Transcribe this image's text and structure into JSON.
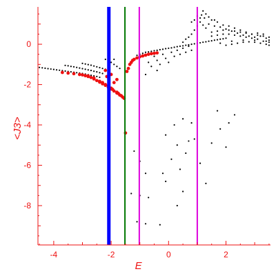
{
  "chart_data": {
    "type": "scatter",
    "title": "",
    "xlabel": "E",
    "ylabel": "<J3>",
    "xlim": [
      -4.55,
      3.55
    ],
    "ylim": [
      -9.95,
      1.85
    ],
    "xticks": [
      -4,
      -2,
      0,
      2
    ],
    "yticks": [
      0,
      -2,
      -4,
      -6,
      -8
    ],
    "colors": {
      "axis": "#ee1111",
      "black_points": "#000000",
      "red_points": "#ee1111",
      "line_blue": "#0000ff",
      "line_green": "#007700",
      "line_magenta": "#dd00dd"
    },
    "vertical_lines": [
      {
        "x": -2.08,
        "color": "#0000ff",
        "width": "thick"
      },
      {
        "x": -1.52,
        "color": "#007700",
        "width": "thin"
      },
      {
        "x": -1.02,
        "color": "#dd00dd",
        "width": "thin"
      },
      {
        "x": 1.0,
        "color": "#dd00dd",
        "width": "thin"
      }
    ],
    "series": [
      {
        "color": "#000000",
        "points": [
          [
            -4.5,
            -1.15
          ],
          [
            -4.4,
            -1.17
          ],
          [
            -4.3,
            -1.19
          ],
          [
            -4.2,
            -1.21
          ],
          [
            -4.1,
            -1.23
          ],
          [
            -4.0,
            -1.25
          ],
          [
            -3.9,
            -1.27
          ],
          [
            -3.8,
            -1.29
          ],
          [
            -3.7,
            -1.31
          ],
          [
            -3.6,
            -1.33
          ],
          [
            -3.5,
            -1.35
          ],
          [
            -3.4,
            -1.37
          ],
          [
            -3.3,
            -1.39
          ],
          [
            -3.2,
            -1.41
          ],
          [
            -3.1,
            -1.43
          ],
          [
            -3.0,
            -1.45
          ],
          [
            -2.9,
            -1.48
          ],
          [
            -2.8,
            -1.51
          ],
          [
            -2.7,
            -1.54
          ],
          [
            -2.6,
            -1.57
          ],
          [
            -2.5,
            -1.6
          ],
          [
            -2.4,
            -1.64
          ],
          [
            -3.6,
            -1.05
          ],
          [
            -3.5,
            -1.07
          ],
          [
            -3.4,
            -1.1
          ],
          [
            -3.3,
            -1.12
          ],
          [
            -3.2,
            -1.15
          ],
          [
            -3.1,
            -1.18
          ],
          [
            -3.0,
            -1.21
          ],
          [
            -2.9,
            -1.24
          ],
          [
            -2.8,
            -1.27
          ],
          [
            -2.7,
            -1.3
          ],
          [
            -2.6,
            -1.34
          ],
          [
            -2.5,
            -1.37
          ],
          [
            -2.4,
            -1.41
          ],
          [
            -2.3,
            -1.45
          ],
          [
            -3.0,
            -0.95
          ],
          [
            -2.9,
            -0.98
          ],
          [
            -2.8,
            -1.01
          ],
          [
            -2.7,
            -1.04
          ],
          [
            -2.6,
            -1.08
          ],
          [
            -2.5,
            -1.12
          ],
          [
            -2.4,
            -1.16
          ],
          [
            -2.3,
            -1.2
          ],
          [
            -2.2,
            -1.24
          ],
          [
            -2.1,
            -1.28
          ],
          [
            -2.2,
            -0.75
          ],
          [
            -2.1,
            -0.85
          ],
          [
            -2.0,
            -0.9
          ],
          [
            -1.9,
            -1.0
          ],
          [
            -1.8,
            -1.1
          ],
          [
            -1.7,
            -1.2
          ],
          [
            -1.1,
            -0.55
          ],
          [
            -1.0,
            -0.5
          ],
          [
            -0.9,
            -0.45
          ],
          [
            -0.8,
            -0.4
          ],
          [
            -0.7,
            -0.38
          ],
          [
            -0.6,
            -0.35
          ],
          [
            -0.5,
            -0.32
          ],
          [
            -0.4,
            -0.3
          ],
          [
            -0.3,
            -0.27
          ],
          [
            -0.2,
            -0.25
          ],
          [
            -0.1,
            -0.22
          ],
          [
            0.0,
            -0.2
          ],
          [
            0.1,
            -0.18
          ],
          [
            0.2,
            -0.15
          ],
          [
            0.3,
            -0.12
          ],
          [
            0.4,
            -0.1
          ],
          [
            0.5,
            -0.08
          ],
          [
            0.6,
            -0.05
          ],
          [
            0.7,
            -0.03
          ],
          [
            0.8,
            0.0
          ],
          [
            0.9,
            0.02
          ],
          [
            1.0,
            0.05
          ],
          [
            1.1,
            0.07
          ],
          [
            1.2,
            0.1
          ],
          [
            1.3,
            0.12
          ],
          [
            1.4,
            0.15
          ],
          [
            1.5,
            0.17
          ],
          [
            1.6,
            0.2
          ],
          [
            1.7,
            0.22
          ],
          [
            1.8,
            0.25
          ],
          [
            1.9,
            0.27
          ],
          [
            2.0,
            0.3
          ],
          [
            -0.7,
            -0.9
          ],
          [
            -0.6,
            -1.1
          ],
          [
            -0.5,
            -0.6
          ],
          [
            -0.4,
            -0.8
          ],
          [
            -0.3,
            -1.0
          ],
          [
            -0.2,
            -0.5
          ],
          [
            -0.1,
            -0.7
          ],
          [
            0.0,
            -0.9
          ],
          [
            0.1,
            -0.4
          ],
          [
            0.2,
            -0.6
          ],
          [
            0.3,
            -0.3
          ],
          [
            0.4,
            -0.5
          ],
          [
            0.5,
            -0.2
          ],
          [
            0.6,
            -0.4
          ],
          [
            0.7,
            -0.1
          ],
          [
            0.8,
            -0.3
          ],
          [
            -0.4,
            -1.3
          ],
          [
            -0.8,
            -1.5
          ],
          [
            0.5,
            0.1
          ],
          [
            0.6,
            0.25
          ],
          [
            0.7,
            0.35
          ],
          [
            0.8,
            0.5
          ],
          [
            0.9,
            0.7
          ],
          [
            1.0,
            0.9
          ],
          [
            1.1,
            1.1
          ],
          [
            1.2,
            0.95
          ],
          [
            1.3,
            0.8
          ],
          [
            1.4,
            1.0
          ],
          [
            1.5,
            1.2
          ],
          [
            1.6,
            0.9
          ],
          [
            1.7,
            1.1
          ],
          [
            1.8,
            0.85
          ],
          [
            1.9,
            0.95
          ],
          [
            2.0,
            0.75
          ],
          [
            2.1,
            0.9
          ],
          [
            2.2,
            0.65
          ],
          [
            2.3,
            0.8
          ],
          [
            2.4,
            0.55
          ],
          [
            2.5,
            0.7
          ],
          [
            2.6,
            0.45
          ],
          [
            2.7,
            0.6
          ],
          [
            2.8,
            0.4
          ],
          [
            2.9,
            0.5
          ],
          [
            3.0,
            0.35
          ],
          [
            3.1,
            0.55
          ],
          [
            3.2,
            0.4
          ],
          [
            3.3,
            0.5
          ],
          [
            3.4,
            0.3
          ],
          [
            3.5,
            0.2
          ],
          [
            1.1,
            1.3
          ],
          [
            1.15,
            1.45
          ],
          [
            1.2,
            1.65
          ],
          [
            1.25,
            1.3
          ],
          [
            1.3,
            1.5
          ],
          [
            0.9,
            1.2
          ],
          [
            1.0,
            1.4
          ],
          [
            1.4,
            1.35
          ],
          [
            1.6,
            1.2
          ],
          [
            0.8,
            1.1
          ],
          [
            1.5,
            0.4
          ],
          [
            1.7,
            0.45
          ],
          [
            1.9,
            0.5
          ],
          [
            2.1,
            0.5
          ],
          [
            2.3,
            0.45
          ],
          [
            2.5,
            0.4
          ],
          [
            2.7,
            0.35
          ],
          [
            2.9,
            0.3
          ],
          [
            3.1,
            0.25
          ],
          [
            3.3,
            0.15
          ],
          [
            3.5,
            0.1
          ],
          [
            1.5,
            0.6
          ],
          [
            1.7,
            0.65
          ],
          [
            1.9,
            0.7
          ],
          [
            2.1,
            0.7
          ],
          [
            2.3,
            0.65
          ],
          [
            2.5,
            0.6
          ],
          [
            2.7,
            0.55
          ],
          [
            2.9,
            0.5
          ],
          [
            3.1,
            0.45
          ],
          [
            3.3,
            0.4
          ],
          [
            3.5,
            0.35
          ],
          [
            2.0,
            -0.05
          ],
          [
            2.2,
            0.0
          ],
          [
            2.4,
            0.05
          ],
          [
            2.6,
            0.1
          ],
          [
            2.8,
            0.12
          ],
          [
            3.0,
            0.1
          ],
          [
            3.2,
            0.05
          ],
          [
            3.4,
            0.0
          ],
          [
            3.5,
            -0.05
          ],
          [
            1.8,
            0.05
          ],
          [
            2.2,
            0.15
          ],
          [
            2.6,
            0.2
          ],
          [
            3.0,
            0.2
          ],
          [
            3.4,
            0.15
          ],
          [
            -2.1,
            -0.85
          ],
          [
            -1.9,
            -0.75
          ],
          [
            -1.2,
            -5.3
          ],
          [
            -1.0,
            -5.8
          ],
          [
            -0.8,
            -6.4
          ],
          [
            -1.3,
            -7.4
          ],
          [
            -1.0,
            -7.5
          ],
          [
            -0.7,
            -7.6
          ],
          [
            -1.1,
            -8.8
          ],
          [
            -0.8,
            -8.9
          ],
          [
            -0.3,
            -8.95
          ],
          [
            -0.1,
            -4.5
          ],
          [
            0.2,
            -4.0
          ],
          [
            0.5,
            -3.7
          ],
          [
            0.3,
            -5.0
          ],
          [
            0.6,
            -5.4
          ],
          [
            0.1,
            -5.7
          ],
          [
            0.4,
            -6.2
          ],
          [
            -0.2,
            -6.4
          ],
          [
            -0.1,
            -6.8
          ],
          [
            0.5,
            -7.3
          ],
          [
            0.3,
            -8.0
          ],
          [
            1.7,
            -3.3
          ],
          [
            1.8,
            -4.2
          ],
          [
            2.1,
            -3.9
          ],
          [
            2.3,
            -3.5
          ],
          [
            1.5,
            -4.9
          ],
          [
            2.0,
            -5.1
          ],
          [
            1.1,
            -5.9
          ],
          [
            0.9,
            -4.7
          ],
          [
            0.8,
            -3.9
          ],
          [
            1.3,
            -6.9
          ],
          [
            0.7,
            -4.8
          ]
        ]
      },
      {
        "color": "#ee1111",
        "points": [
          [
            -3.7,
            -1.4
          ],
          [
            -3.5,
            -1.43
          ],
          [
            -3.3,
            -1.46
          ],
          [
            -3.1,
            -1.5
          ],
          [
            -3.0,
            -1.52
          ],
          [
            -2.9,
            -1.56
          ],
          [
            -2.8,
            -1.6
          ],
          [
            -2.7,
            -1.65
          ],
          [
            -2.6,
            -1.72
          ],
          [
            -2.5,
            -1.8
          ],
          [
            -2.4,
            -1.88
          ],
          [
            -2.3,
            -1.96
          ],
          [
            -2.2,
            -2.04
          ],
          [
            -2.1,
            -2.13
          ],
          [
            -2.0,
            -2.22
          ],
          [
            -1.9,
            -2.32
          ],
          [
            -1.8,
            -2.42
          ],
          [
            -1.7,
            -2.52
          ],
          [
            -1.6,
            -2.62
          ],
          [
            -1.55,
            -2.68
          ],
          [
            -2.8,
            -1.57
          ],
          [
            -2.6,
            -1.68
          ],
          [
            -2.4,
            -1.84
          ],
          [
            -2.2,
            -2.0
          ],
          [
            -2.0,
            -2.18
          ],
          [
            -1.8,
            -2.38
          ],
          [
            -1.65,
            -2.55
          ],
          [
            -2.3,
            -1.9
          ],
          [
            -2.1,
            -2.06
          ],
          [
            -1.95,
            -2.24
          ],
          [
            -1.75,
            -2.44
          ],
          [
            -2.2,
            -1.3
          ],
          [
            -2.15,
            -1.6
          ],
          [
            -2.0,
            -1.5
          ],
          [
            -1.9,
            -1.9
          ],
          [
            -1.8,
            -1.75
          ],
          [
            -1.45,
            -1.35
          ],
          [
            -1.4,
            -1.2
          ],
          [
            -1.35,
            -1.0
          ],
          [
            -1.3,
            -0.9
          ],
          [
            -1.25,
            -0.8
          ],
          [
            -1.2,
            -0.75
          ],
          [
            -1.1,
            -0.68
          ],
          [
            -1.0,
            -0.62
          ],
          [
            -0.9,
            -0.58
          ],
          [
            -0.8,
            -0.54
          ],
          [
            -0.7,
            -0.5
          ],
          [
            -0.6,
            -0.47
          ],
          [
            -0.5,
            -0.45
          ],
          [
            -0.4,
            -0.43
          ],
          [
            -1.5,
            -4.4
          ]
        ]
      }
    ]
  }
}
